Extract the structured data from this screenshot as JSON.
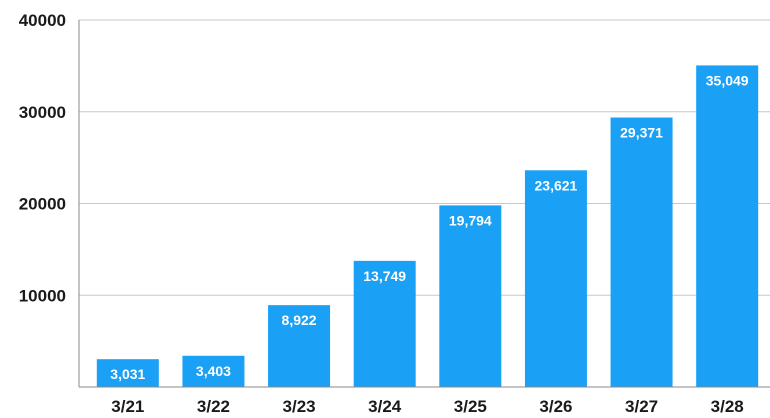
{
  "chart_data": {
    "type": "bar",
    "categories": [
      "3/21",
      "3/22",
      "3/23",
      "3/24",
      "3/25",
      "3/26",
      "3/27",
      "3/28"
    ],
    "values": [
      3031,
      3403,
      8922,
      13749,
      19794,
      23621,
      29371,
      35049
    ],
    "value_labels": [
      "3,031",
      "3,403",
      "8,922",
      "13,749",
      "19,794",
      "23,621",
      "29,371",
      "35,049"
    ],
    "y_ticks": [
      "40000",
      "30000",
      "20000",
      "10000"
    ],
    "ylim": [
      0,
      40000
    ],
    "grid": true,
    "bar_color": "#1aa0f5",
    "title": "",
    "xlabel": "",
    "ylabel": ""
  }
}
